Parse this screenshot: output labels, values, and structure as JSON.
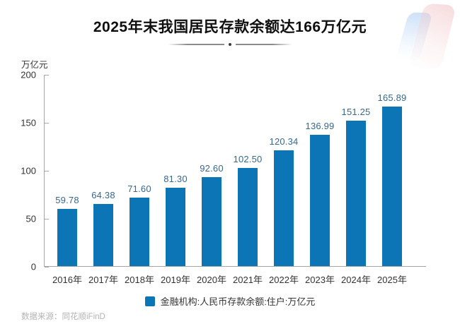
{
  "page": {
    "title": "2025年末我国居民存款余额达166万亿元",
    "unit_label": "万亿元",
    "legend_label": "金融机构:人民币存款余额:住户:万亿元",
    "source": "数据来源：同花顺iFinD"
  },
  "colors": {
    "bar": "#0c75b5",
    "value_label": "#38678c",
    "axis": "#a6a6a6",
    "tick_label": "#333333",
    "title": "#0f0f0f",
    "source": "#b3b3b3",
    "deco_blue": "#b2d0f4",
    "deco_pink": "#f0bec2"
  },
  "chart_data": {
    "type": "bar",
    "title": "2025年末我国居民存款余额达166万亿元",
    "categories": [
      "2016年",
      "2017年",
      "2018年",
      "2019年",
      "2020年",
      "2021年",
      "2022年",
      "2023年",
      "2024年",
      "2025年"
    ],
    "values": [
      59.78,
      64.38,
      71.6,
      81.3,
      92.6,
      102.5,
      120.34,
      136.99,
      151.25,
      165.89
    ],
    "value_label_decimals": 2,
    "xlabel": "",
    "ylabel": "万亿元",
    "ylim": [
      0,
      200
    ],
    "yticks": [
      0,
      50,
      100,
      150,
      200
    ],
    "grid": false,
    "legend": [
      "金融机构:人民币存款余额:住户:万亿元"
    ],
    "legend_position": "bottom",
    "bar_color": "#0c75b5"
  }
}
